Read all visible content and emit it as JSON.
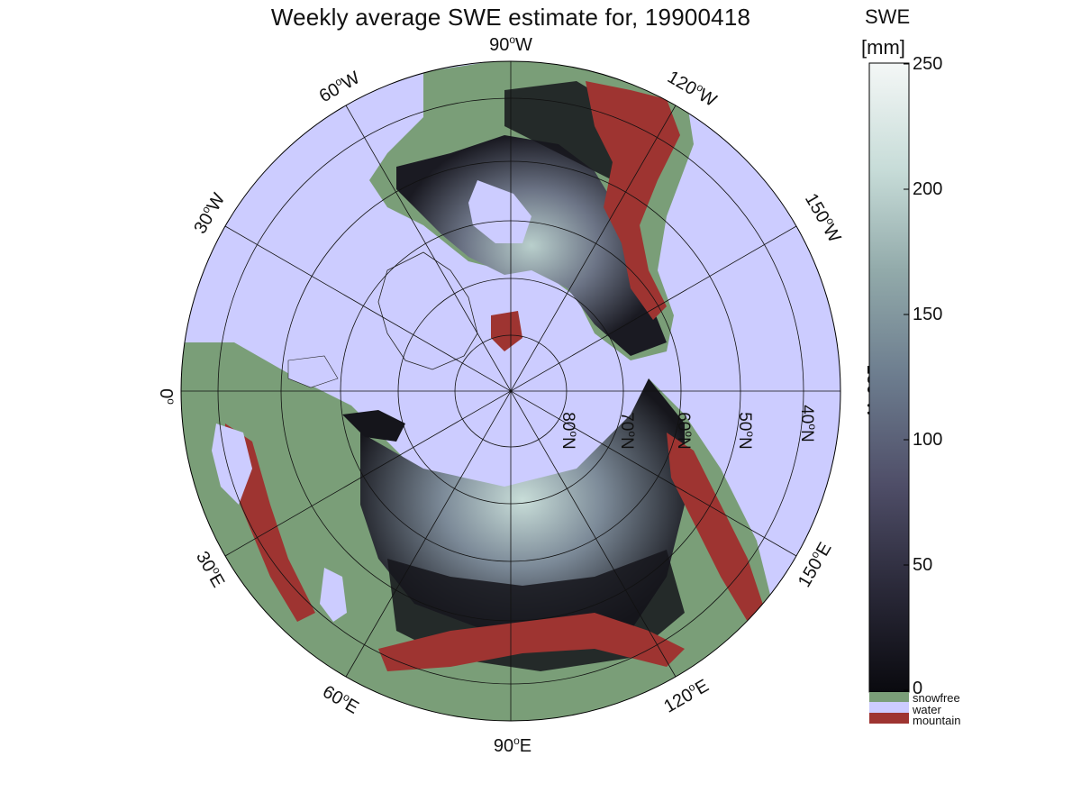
{
  "title": "Weekly average SWE estimate for, 19900418",
  "colorbar": {
    "title_line1": "SWE",
    "title_line2": "[mm]",
    "ticks": [
      "250",
      "200",
      "150",
      "100",
      "50",
      "0"
    ],
    "range_mm": [
      0,
      250
    ],
    "colors": [
      "#0a0a0f",
      "#2b2a3a",
      "#4f4e68",
      "#6c7c8e",
      "#92aaaa",
      "#c7dcd8",
      "#f4f7f6"
    ]
  },
  "legend": {
    "items": [
      {
        "label": "snowfree",
        "color": "#7a9e78"
      },
      {
        "label": "water",
        "color": "#ccccff"
      },
      {
        "label": "mountain",
        "color": "#9e3431"
      }
    ]
  },
  "map": {
    "projection": "north polar stereographic",
    "water_color": "#ccccff",
    "snowfree_color": "#7a9e78",
    "mountain_color": "#9e3431",
    "meridian_labels": [
      {
        "deg": "90",
        "hemi": "W"
      },
      {
        "deg": "120",
        "hemi": "W"
      },
      {
        "deg": "150",
        "hemi": "W"
      },
      {
        "deg": "180",
        "hemi": "W"
      },
      {
        "deg": "150",
        "hemi": "E"
      },
      {
        "deg": "120",
        "hemi": "E"
      },
      {
        "deg": "90",
        "hemi": "E"
      },
      {
        "deg": "60",
        "hemi": "E"
      },
      {
        "deg": "30",
        "hemi": "E"
      },
      {
        "deg": "0",
        "hemi": ""
      },
      {
        "deg": "30",
        "hemi": "W"
      },
      {
        "deg": "60",
        "hemi": "W"
      }
    ],
    "parallel_labels": [
      {
        "deg": "80",
        "hemi": "N"
      },
      {
        "deg": "70",
        "hemi": "N"
      },
      {
        "deg": "60",
        "hemi": "N"
      },
      {
        "deg": "50",
        "hemi": "N"
      },
      {
        "deg": "40",
        "hemi": "N"
      }
    ]
  }
}
